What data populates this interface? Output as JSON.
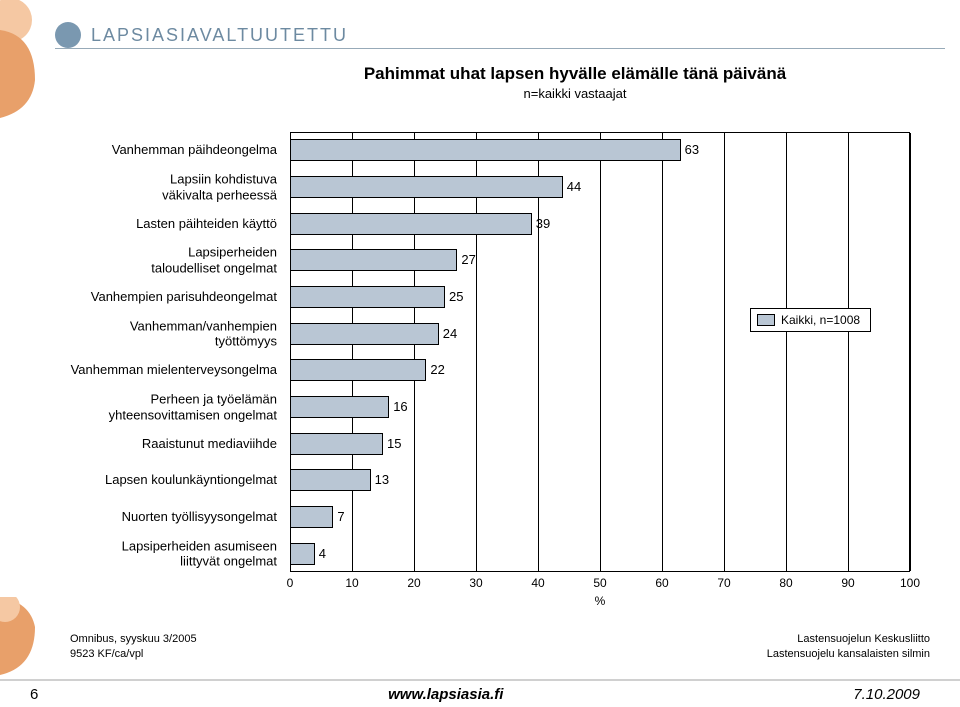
{
  "header": {
    "org_name": "LAPSIASIAVALTUUTETTU"
  },
  "chart": {
    "type": "horizontal-bar",
    "title": "Pahimmat uhat lapsen hyvälle elämälle tänä päivänä",
    "subtitle": "n=kaikki vastaajat",
    "x_axis_label": "%",
    "xlim": [
      0,
      100
    ],
    "xtick_step": 10,
    "xticks": [
      0,
      10,
      20,
      30,
      40,
      50,
      60,
      70,
      80,
      90,
      100
    ],
    "bar_color": "#b9c6d4",
    "bar_border": "#000000",
    "grid_color": "#000000",
    "background_color": "#ffffff",
    "title_fontsize": 17,
    "subtitle_fontsize": 13,
    "label_fontsize": 13,
    "value_fontsize": 13,
    "bars": [
      {
        "label": "Vanhemman päihdeongelma",
        "value": 63
      },
      {
        "label": "Lapsiin kohdistuva\nväkivalta perheessä",
        "value": 44
      },
      {
        "label": "Lasten päihteiden käyttö",
        "value": 39
      },
      {
        "label": "Lapsiperheiden\ntaloudelliset ongelmat",
        "value": 27
      },
      {
        "label": "Vanhempien parisuhdeongelmat",
        "value": 25
      },
      {
        "label": "Vanhemman/vanhempien työttömyys",
        "value": 24
      },
      {
        "label": "Vanhemman mielenterveysongelma",
        "value": 22
      },
      {
        "label": "Perheen ja työelämän\nyhteensovittamisen ongelmat",
        "value": 16
      },
      {
        "label": "Raaistunut mediaviihde",
        "value": 15
      },
      {
        "label": "Lapsen koulunkäyntiongelmat",
        "value": 13
      },
      {
        "label": "Nuorten työllisyysongelmat",
        "value": 7
      },
      {
        "label": "Lapsiperheiden asumiseen\nliittyvät ongelmat",
        "value": 4
      }
    ],
    "legend": {
      "label": "Kaikki, n=1008",
      "swatch_color": "#b9c6d4"
    }
  },
  "source": {
    "left_line1": "Omnibus, syyskuu 3/2005",
    "left_line2": "9523 KF/ca/vpl",
    "right_line1": "Lastensuojelun Keskusliitto",
    "right_line2": "Lastensuojelu kansalaisten silmin"
  },
  "footer": {
    "page_number": "6",
    "url": "www.lapsiasia.fi",
    "date": "7.10.2009"
  },
  "deco_color_orange": "#e8a06a",
  "deco_color_skin": "#f5c8a3"
}
